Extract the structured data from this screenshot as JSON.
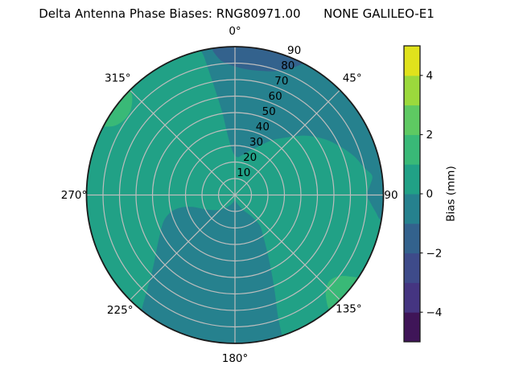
{
  "title": "Delta Antenna Phase Biases: RNG80971.00      NONE GALILEO-E1",
  "chart_data": {
    "type": "polar_filled_contour",
    "title": "Delta Antenna Phase Biases: RNG80971.00      NONE GALILEO-E1",
    "angular_axis": {
      "direction": "clockwise",
      "zero_location": "N",
      "tick_labels": [
        {
          "az": 0,
          "label": "0°"
        },
        {
          "az": 45,
          "label": "45°"
        },
        {
          "az": 90,
          "label": "90"
        },
        {
          "az": 135,
          "label": "135°"
        },
        {
          "az": 180,
          "label": "180°"
        },
        {
          "az": 225,
          "label": "225°"
        },
        {
          "az": 270,
          "label": "270°"
        },
        {
          "az": 315,
          "label": "315°"
        }
      ]
    },
    "radial_axis": {
      "ticks": [
        10,
        20,
        30,
        40,
        50,
        60,
        70,
        80,
        90
      ],
      "max": 90,
      "label_azimuth_deg": 22.5
    },
    "grid": {
      "rings": [
        10,
        20,
        30,
        40,
        50,
        60,
        70,
        80
      ],
      "spokes_deg": [
        0,
        45,
        90,
        135,
        180,
        225,
        270,
        315
      ],
      "grid_color": "#bdbdbd",
      "rim_color": "#1a1a1a"
    },
    "colormap": {
      "name": "viridis-discrete",
      "levels": [
        -5,
        -4,
        -3,
        -2,
        -1,
        0,
        1,
        2,
        3,
        4,
        5
      ],
      "colors": [
        "#3f1558",
        "#453581",
        "#3e4b8a",
        "#33628d",
        "#26818e",
        "#21a186",
        "#39b977",
        "#5ec962",
        "#9bd93c",
        "#e0e21c"
      ]
    },
    "base_fill": {
      "bias_bin": "0..1",
      "color_index": 5
    },
    "regions": [
      {
        "name": "north-teal-band",
        "bias_bin": "-1..0",
        "color_index": 4,
        "points": [
          [
            347,
            96
          ],
          [
            356,
            97
          ],
          [
            8,
            97
          ],
          [
            20,
            97
          ],
          [
            32,
            97
          ],
          [
            44,
            97
          ],
          [
            56,
            97
          ],
          [
            68,
            97
          ],
          [
            80,
            97
          ],
          [
            92,
            97
          ],
          [
            100,
            96
          ],
          [
            100,
            90
          ],
          [
            97,
            86
          ],
          [
            93,
            82
          ],
          [
            90,
            80
          ],
          [
            86,
            82
          ],
          [
            82,
            84
          ],
          [
            78,
            80
          ],
          [
            72,
            76
          ],
          [
            65,
            70
          ],
          [
            58,
            64
          ],
          [
            50,
            56
          ],
          [
            42,
            47
          ],
          [
            34,
            40
          ],
          [
            26,
            33
          ],
          [
            18,
            28
          ],
          [
            10,
            24.5
          ],
          [
            4,
            23
          ],
          [
            359,
            24.5
          ],
          [
            356,
            28
          ],
          [
            354,
            33
          ],
          [
            352.5,
            40
          ],
          [
            351.5,
            49
          ],
          [
            350,
            60
          ],
          [
            348.5,
            73
          ],
          [
            347.5,
            85
          ]
        ]
      },
      {
        "name": "north-blue-patch",
        "bias_bin": "-2..-1",
        "color_index": 3,
        "points": [
          [
            351,
            94
          ],
          [
            0,
            96
          ],
          [
            12,
            96
          ],
          [
            22,
            96
          ],
          [
            29,
            94
          ],
          [
            27,
            89
          ],
          [
            23,
            83
          ],
          [
            18,
            79
          ],
          [
            12,
            77
          ],
          [
            6,
            76.5
          ],
          [
            0,
            78
          ],
          [
            355,
            81
          ],
          [
            352.5,
            85
          ],
          [
            351,
            90
          ]
        ]
      },
      {
        "name": "south-teal-swirl",
        "bias_bin": "-1..0",
        "color_index": 4,
        "points": [
          [
            182,
            3
          ],
          [
            163,
            6
          ],
          [
            150,
            11
          ],
          [
            142,
            17
          ],
          [
            141,
            24
          ],
          [
            146,
            31
          ],
          [
            151,
            41
          ],
          [
            155,
            53
          ],
          [
            158,
            65
          ],
          [
            160.5,
            78
          ],
          [
            161.5,
            90
          ],
          [
            162,
            95
          ],
          [
            172,
            96
          ],
          [
            184,
            97
          ],
          [
            196,
            97
          ],
          [
            208,
            96
          ],
          [
            217,
            95
          ],
          [
            219,
            90
          ],
          [
            221.5,
            82
          ],
          [
            225,
            73
          ],
          [
            230,
            64
          ],
          [
            236.5,
            56.5
          ],
          [
            243.5,
            50.5
          ],
          [
            250.5,
            45.5
          ],
          [
            255.5,
            39.5
          ],
          [
            257,
            33
          ],
          [
            254.5,
            27
          ],
          [
            249,
            22.5
          ],
          [
            241,
            18.5
          ],
          [
            231,
            14.5
          ],
          [
            219,
            10.5
          ],
          [
            206,
            7
          ],
          [
            193,
            4.5
          ]
        ]
      },
      {
        "name": "west-green-spot",
        "bias_bin": "1..2",
        "color_index": 6,
        "points": [
          [
            297.5,
            93
          ],
          [
            298.5,
            87
          ],
          [
            301,
            83
          ],
          [
            305,
            81
          ],
          [
            309,
            81.5
          ],
          [
            312.5,
            84.5
          ],
          [
            314.5,
            88
          ],
          [
            315,
            93
          ],
          [
            306,
            95
          ]
        ]
      },
      {
        "name": "southeast-green-spot",
        "bias_bin": "1..2",
        "color_index": 6,
        "points": [
          [
            124,
            93
          ],
          [
            125.5,
            85
          ],
          [
            128.5,
            79.5
          ],
          [
            132.5,
            77.5
          ],
          [
            136.5,
            80
          ],
          [
            139,
            84.5
          ],
          [
            140.5,
            89
          ],
          [
            141,
            93
          ],
          [
            132,
            95
          ]
        ]
      }
    ],
    "colorbar": {
      "label": "Bias (mm)",
      "range": [
        -5,
        5
      ],
      "ticks": [
        {
          "value": 4,
          "label": "4"
        },
        {
          "value": 2,
          "label": "2"
        },
        {
          "value": 0,
          "label": "0"
        },
        {
          "value": -2,
          "label": "−2"
        },
        {
          "value": -4,
          "label": "−4"
        }
      ]
    }
  }
}
